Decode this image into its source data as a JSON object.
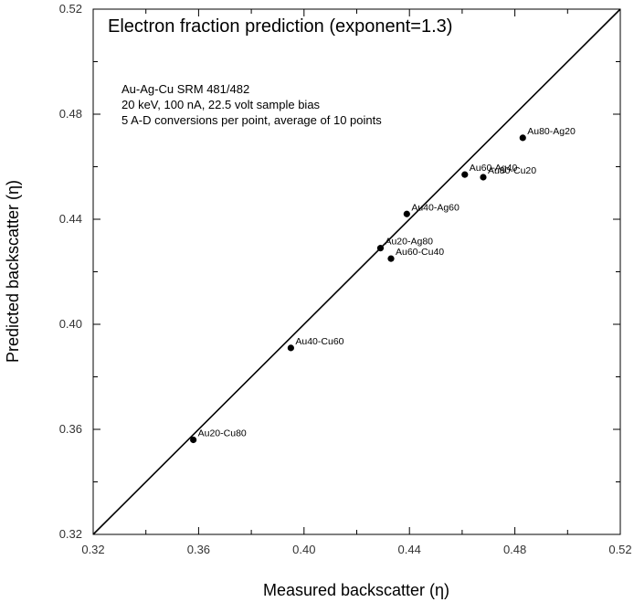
{
  "chart_data": {
    "type": "scatter",
    "title": "Electron fraction prediction (exponent=1.3)",
    "xlabel": "Measured backscatter (η)",
    "ylabel": "Predicted backscatter (η)",
    "xlim": [
      0.32,
      0.52
    ],
    "ylim": [
      0.32,
      0.52
    ],
    "x_ticks": [
      "0.32",
      "0.36",
      "0.40",
      "0.44",
      "0.48",
      "0.52"
    ],
    "y_ticks": [
      "0.32",
      "0.36",
      "0.40",
      "0.44",
      "0.48",
      "0.52"
    ],
    "annotations": [
      "Au-Ag-Cu SRM 481/482",
      "20 keV, 100 nA, 22.5 volt sample bias",
      "5 A-D conversions per point, average of 10 points"
    ],
    "reference_line": {
      "from": [
        0.32,
        0.32
      ],
      "to": [
        0.52,
        0.52
      ]
    },
    "grid": false,
    "points": [
      {
        "label": "Au20-Cu80",
        "x": 0.358,
        "y": 0.356
      },
      {
        "label": "Au40-Cu60",
        "x": 0.395,
        "y": 0.391
      },
      {
        "label": "Au20-Ag80",
        "x": 0.429,
        "y": 0.429
      },
      {
        "label": "Au60-Cu40",
        "x": 0.433,
        "y": 0.425
      },
      {
        "label": "Au40-Ag60",
        "x": 0.439,
        "y": 0.442
      },
      {
        "label": "Au60-Ag40",
        "x": 0.461,
        "y": 0.457
      },
      {
        "label": "Au80-Cu20",
        "x": 0.468,
        "y": 0.456
      },
      {
        "label": "Au80-Ag20",
        "x": 0.483,
        "y": 0.471
      }
    ],
    "colors": {
      "marks": "#000000",
      "axis": "#000000",
      "background": "#ffffff"
    }
  }
}
